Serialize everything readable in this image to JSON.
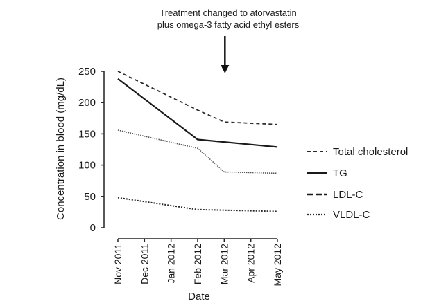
{
  "chart_data": {
    "type": "line",
    "title": "",
    "annotation": {
      "lines": [
        "Treatment changed to atorvastatin",
        "plus omega-3 fatty acid ethyl esters"
      ],
      "at_category": "Mar 2012"
    },
    "xlabel": "Date",
    "ylabel": "Concentration in blood (mg/dL)",
    "ylim": [
      0,
      250
    ],
    "yticks": [
      0,
      50,
      100,
      150,
      200,
      250
    ],
    "categories": [
      "Nov 2011",
      "Dec 2011",
      "Jan 2012",
      "Feb 2012",
      "Mar 2012",
      "Apr 2012",
      "May 2012"
    ],
    "legend_position": "right",
    "series": [
      {
        "name": "Total cholesterol",
        "style": "dashed",
        "x": [
          "Nov 2011",
          "Feb 2012",
          "Mar 2012",
          "May 2012"
        ],
        "values": [
          250,
          188,
          169,
          165
        ]
      },
      {
        "name": "TG",
        "style": "solid",
        "x": [
          "Nov 2011",
          "Feb 2012",
          "May 2012"
        ],
        "values": [
          238,
          141,
          129
        ]
      },
      {
        "name": "LDL-C",
        "style": "dotted-light",
        "x": [
          "Nov 2011",
          "Feb 2012",
          "Mar 2012",
          "May 2012"
        ],
        "values": [
          156,
          127,
          89,
          87
        ]
      },
      {
        "name": "VLDL-C",
        "style": "dotted-dark",
        "x": [
          "Nov 2011",
          "Feb 2012",
          "Mar 2012",
          "May 2012"
        ],
        "values": [
          48,
          29,
          28,
          26
        ]
      }
    ],
    "legend_markers": [
      "dashed",
      "solid",
      "long-dash",
      "dotted-dark"
    ]
  }
}
